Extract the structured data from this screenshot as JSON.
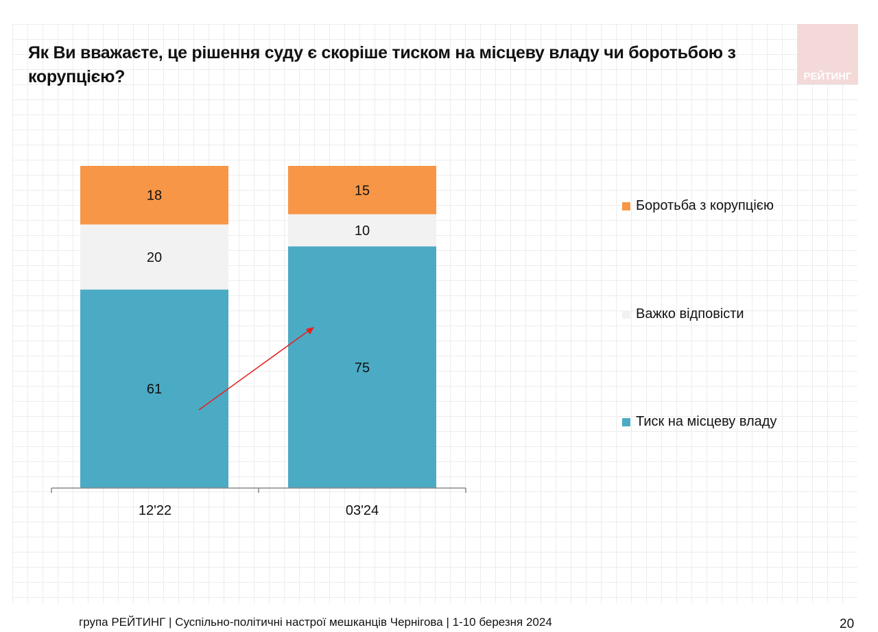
{
  "title": "Як Ви вважаєте, це рішення суду є скоріше тиском на місцеву владу чи боротьбою з корупцією?",
  "logo_text": "РЕЙТИНГ",
  "footer": "група РЕЙТИНГ   | Суспільно-політичні  настрої мешканців Чернігова | 1-10 березня 2024",
  "page_number": "20",
  "chart_data": {
    "type": "bar",
    "stacked": true,
    "categories": [
      "12'22",
      "03'24"
    ],
    "series": [
      {
        "name": "Тиск на місцеву владу",
        "color": "#4baac4",
        "values": [
          61,
          75
        ]
      },
      {
        "name": "Важко відповісти",
        "color": "#f2f2f2",
        "values": [
          20,
          10
        ]
      },
      {
        "name": "Боротьба з корупцією",
        "color": "#f79646",
        "values": [
          18,
          15
        ]
      }
    ],
    "legend_order": [
      "Боротьба з корупцією",
      "Важко відповісти",
      "Тиск на місцеву владу"
    ],
    "legend_position": "right",
    "annotation": {
      "type": "arrow",
      "color": "#e82020",
      "meaning": "increase 61 to 75"
    },
    "ylim": [
      0,
      100
    ]
  }
}
